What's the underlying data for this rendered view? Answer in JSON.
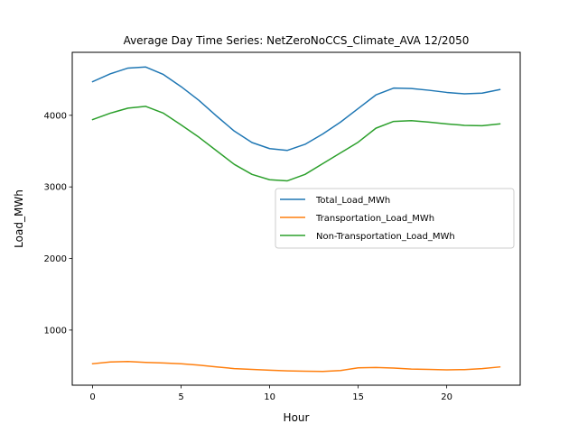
{
  "chart_data": {
    "type": "line",
    "title": "Average Day Time Series: NetZeroNoCCS_Climate_AVA 12/2050",
    "xlabel": "Hour",
    "ylabel": "Load_MWh",
    "xlim": [
      -1.15,
      24.15
    ],
    "ylim": [
      230,
      4880
    ],
    "xticks": [
      0,
      5,
      10,
      15,
      20
    ],
    "yticks": [
      1000,
      2000,
      3000,
      4000
    ],
    "grid": false,
    "legend_position": "center-right",
    "x": [
      0,
      1,
      2,
      3,
      4,
      5,
      6,
      7,
      8,
      9,
      10,
      11,
      12,
      13,
      14,
      15,
      16,
      17,
      18,
      19,
      20,
      21,
      22,
      23
    ],
    "series": [
      {
        "name": "Total_Load_MWh",
        "color": "#1f77b4",
        "values": [
          4470,
          4580,
          4660,
          4675,
          4570,
          4400,
          4210,
          3990,
          3780,
          3620,
          3535,
          3510,
          3595,
          3740,
          3905,
          4095,
          4285,
          4380,
          4375,
          4350,
          4320,
          4300,
          4310,
          4360
        ]
      },
      {
        "name": "Transportation_Load_MWh",
        "color": "#ff7f0e",
        "values": [
          530,
          555,
          560,
          548,
          540,
          530,
          510,
          485,
          462,
          450,
          440,
          430,
          425,
          422,
          435,
          472,
          478,
          470,
          455,
          450,
          445,
          448,
          462,
          485
        ]
      },
      {
        "name": "Non-Transportation_Load_MWh",
        "color": "#2ca02c",
        "values": [
          3940,
          4030,
          4100,
          4125,
          4030,
          3865,
          3695,
          3505,
          3315,
          3175,
          3100,
          3085,
          3175,
          3325,
          3475,
          3625,
          3820,
          3915,
          3925,
          3905,
          3880,
          3860,
          3855,
          3880
        ]
      }
    ]
  }
}
